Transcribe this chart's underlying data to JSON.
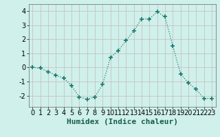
{
  "x": [
    0,
    1,
    2,
    3,
    4,
    5,
    6,
    7,
    8,
    9,
    10,
    11,
    12,
    13,
    14,
    15,
    16,
    17,
    18,
    19,
    20,
    21,
    22,
    23
  ],
  "y": [
    0.0,
    -0.05,
    -0.3,
    -0.55,
    -0.75,
    -1.3,
    -2.1,
    -2.25,
    -2.1,
    -1.2,
    0.7,
    1.2,
    1.9,
    2.6,
    3.45,
    3.45,
    3.95,
    3.6,
    1.55,
    -0.45,
    -1.1,
    -1.55,
    -2.2,
    -2.2
  ],
  "xlabel": "Humidex (Indice chaleur)",
  "xlim": [
    -0.5,
    23.5
  ],
  "ylim": [
    -2.8,
    4.5
  ],
  "yticks": [
    -2,
    -1,
    0,
    1,
    2,
    3,
    4
  ],
  "xticks": [
    0,
    1,
    2,
    3,
    4,
    5,
    6,
    7,
    8,
    9,
    10,
    11,
    12,
    13,
    14,
    15,
    16,
    17,
    18,
    19,
    20,
    21,
    22,
    23
  ],
  "line_color": "#1a7a6e",
  "marker": "+",
  "marker_size": 4,
  "bg_color": "#cff0eb",
  "grid_color": "#c8b8b8",
  "fig_bg": "#cff0eb",
  "xlabel_fontsize": 8,
  "tick_fontsize": 7
}
